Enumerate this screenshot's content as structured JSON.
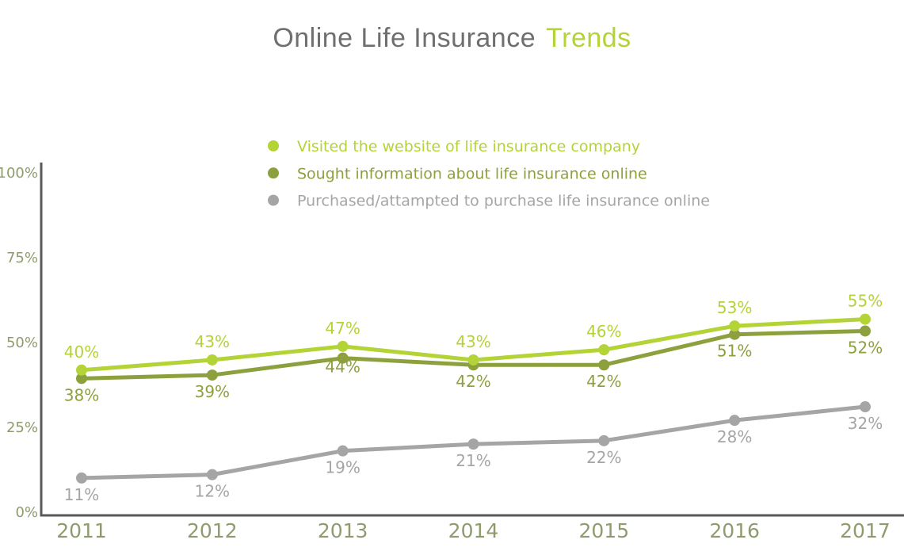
{
  "title": {
    "main": "Online Life Insurance",
    "accent": "Trends"
  },
  "colors": {
    "title_gray": "#6e6f6e",
    "accent_green": "#b3d336",
    "olive_green": "#8da03e",
    "series_gray": "#a5a5a5",
    "axis_label": "#8e9c6d",
    "axis_line": "#58595b",
    "background": "#ffffff"
  },
  "chart_data": {
    "type": "line",
    "title": "Online Life Insurance Trends",
    "x": [
      "2011",
      "2012",
      "2013",
      "2014",
      "2015",
      "2016",
      "2017"
    ],
    "series": [
      {
        "name": "Visited the website of life insurance company",
        "color": "#b3d336",
        "values": [
          40,
          43,
          47,
          43,
          46,
          53,
          55
        ],
        "data_label_position": "above"
      },
      {
        "name": "Sought information about life insurance online",
        "color": "#8da03e",
        "values": [
          38,
          39,
          44,
          42,
          42,
          51,
          52
        ],
        "data_label_position": "below"
      },
      {
        "name": "Purchased/attampted to purchase life insurance online",
        "color": "#a5a5a5",
        "values": [
          11,
          12,
          19,
          21,
          22,
          28,
          32
        ],
        "data_label_position": "below"
      }
    ],
    "y_axis": {
      "ticks": [
        0,
        25,
        50,
        75,
        100
      ],
      "tick_format": "{v}%",
      "range": [
        0,
        100
      ]
    },
    "data_label_format": "{v}%",
    "grid": false,
    "legend_position": "top-center-inside"
  }
}
